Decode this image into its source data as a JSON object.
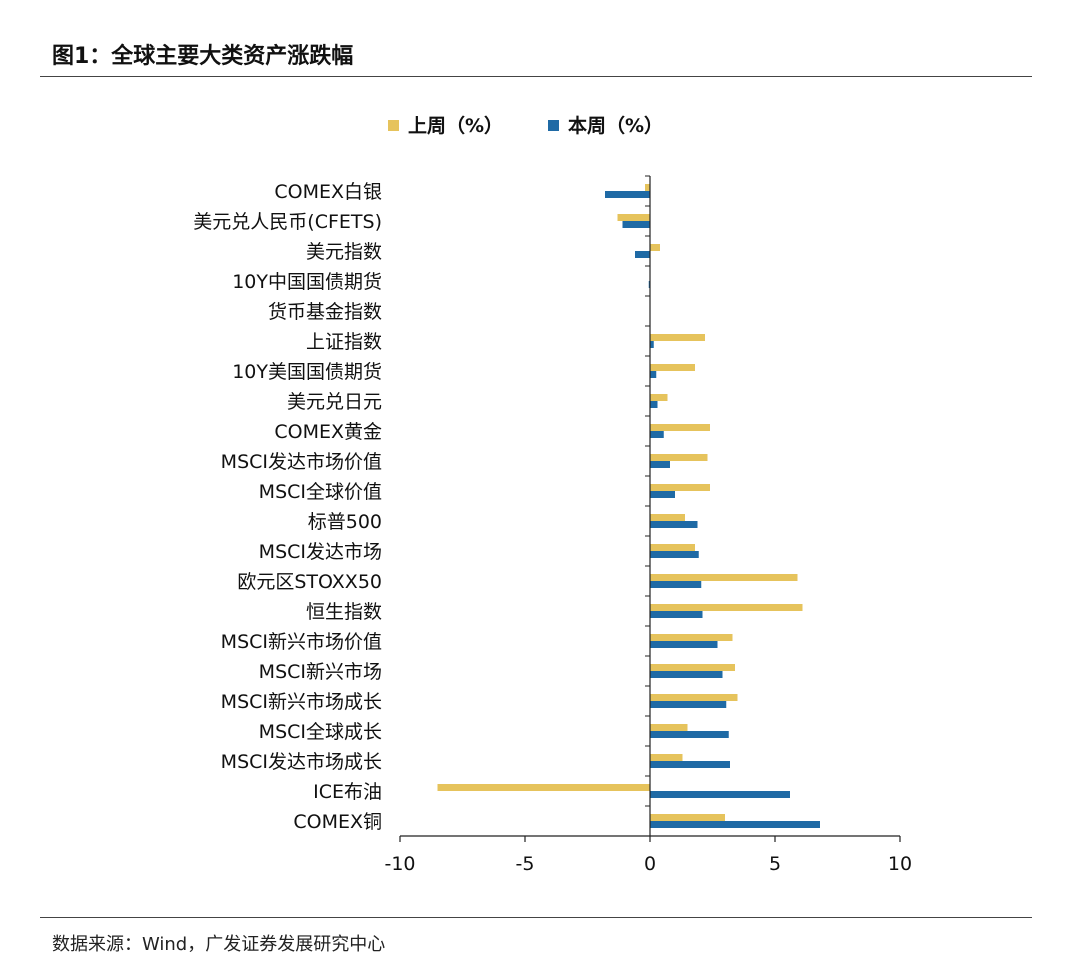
{
  "header": {
    "title": "图1：全球主要大类资产涨跌幅"
  },
  "footer": {
    "source": "数据来源：Wind，广发证券发展研究中心"
  },
  "colors": {
    "last_week": "#E6C35C",
    "this_week": "#1F6AA5"
  },
  "chart_data": {
    "type": "bar",
    "orientation": "horizontal",
    "title": "",
    "xlabel": "",
    "ylabel": "",
    "xlim": [
      -10,
      10
    ],
    "xticks": [
      "-10",
      "-5",
      "0",
      "5",
      "10"
    ],
    "legend_position": "top",
    "categories": [
      "COMEX白银",
      "美元兑人民币(CFETS)",
      "美元指数",
      "10Y中国国债期货",
      "货币基金指数",
      "上证指数",
      "10Y美国国债期货",
      "美元兑日元",
      "COMEX黄金",
      "MSCI发达市场价值",
      "MSCI全球价值",
      "标普500",
      "MSCI发达市场",
      "欧元区STOXX50",
      "恒生指数",
      "MSCI新兴市场价值",
      "MSCI新兴市场",
      "MSCI新兴市场成长",
      "MSCI全球成长",
      "MSCI发达市场成长",
      "ICE布油",
      "COMEX铜"
    ],
    "series": [
      {
        "name": "上周（%）",
        "values": [
          -0.2,
          -1.3,
          0.4,
          0.0,
          0.0,
          2.2,
          1.8,
          0.7,
          2.4,
          2.3,
          2.4,
          1.4,
          1.8,
          5.9,
          6.1,
          3.3,
          3.4,
          3.5,
          1.5,
          1.3,
          -8.5,
          3.0
        ]
      },
      {
        "name": "本周（%）",
        "values": [
          -1.8,
          -1.1,
          -0.6,
          -0.05,
          0.0,
          0.15,
          0.25,
          0.3,
          0.55,
          0.8,
          1.0,
          1.9,
          1.95,
          2.05,
          2.1,
          2.7,
          2.9,
          3.05,
          3.15,
          3.2,
          5.6,
          6.8
        ]
      }
    ]
  }
}
